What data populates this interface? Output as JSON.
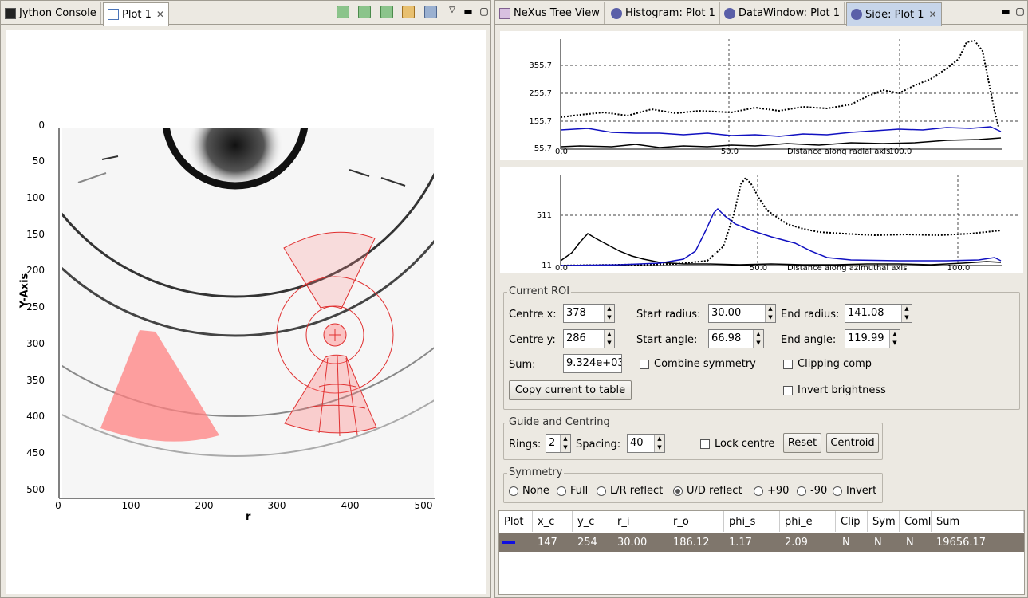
{
  "left_tabs": {
    "console": "Jython Console",
    "plot": "Plot 1"
  },
  "right_tabs": {
    "nexus": "NeXus Tree View",
    "histogram": "Histogram: Plot 1",
    "datawindow": "DataWindow: Plot 1",
    "side": "Side: Plot 1"
  },
  "main_plot": {
    "ylabel": "Y-Axis",
    "xlabel": "r",
    "yticks": [
      "0",
      "50",
      "100",
      "150",
      "200",
      "250",
      "300",
      "350",
      "400",
      "450",
      "500"
    ],
    "xticks": [
      "0",
      "100",
      "200",
      "300",
      "400",
      "500"
    ]
  },
  "radial_plot": {
    "yticks": [
      "355.7",
      "255.7",
      "155.7",
      "55.7"
    ],
    "xticks": [
      "0.0",
      "50.0",
      "100.0"
    ],
    "xlabel": "Distance along radial axis"
  },
  "azimuthal_plot": {
    "yticks": [
      "511",
      "11"
    ],
    "xticks": [
      "0.0",
      "50.0",
      "100.0"
    ],
    "xlabel": "Distance along azimuthal axis"
  },
  "roi": {
    "title": "Current ROI",
    "centre_x_label": "Centre x:",
    "centre_x": "378",
    "centre_y_label": "Centre y:",
    "centre_y": "286",
    "start_radius_label": "Start radius:",
    "start_radius": "30.00",
    "end_radius_label": "End radius:",
    "end_radius": "141.08",
    "start_angle_label": "Start angle:",
    "start_angle": "66.98",
    "end_angle_label": "End angle:",
    "end_angle": "119.99",
    "sum_label": "Sum:",
    "sum": "9.324e+03",
    "combine_symmetry": "Combine symmetry",
    "clipping_comp": "Clipping comp",
    "invert_brightness": "Invert brightness",
    "copy_button": "Copy current to table"
  },
  "guide": {
    "title": "Guide and Centring",
    "rings_label": "Rings:",
    "rings": "2",
    "spacing_label": "Spacing:",
    "spacing": "40",
    "lock_centre": "Lock centre",
    "reset": "Reset",
    "centroid": "Centroid"
  },
  "symmetry": {
    "title": "Symmetry",
    "options": [
      "None",
      "Full",
      "L/R reflect",
      "U/D reflect",
      "+90",
      "-90",
      "Invert"
    ],
    "selected": "U/D reflect"
  },
  "table": {
    "headers": [
      "Plot",
      "x_c",
      "y_c",
      "r_i",
      "r_o",
      "phi_s",
      "phi_e",
      "Clip",
      "Sym",
      "Coml",
      "Sum"
    ],
    "rows": [
      [
        "",
        "147",
        "254",
        "30.00",
        "186.12",
        "1.17",
        "2.09",
        "N",
        "N",
        "N",
        "19656.17"
      ]
    ]
  },
  "colors": {
    "roi_red": "#ff8080",
    "series_blue": "#1010c0",
    "row_selected": "#7f766c"
  }
}
